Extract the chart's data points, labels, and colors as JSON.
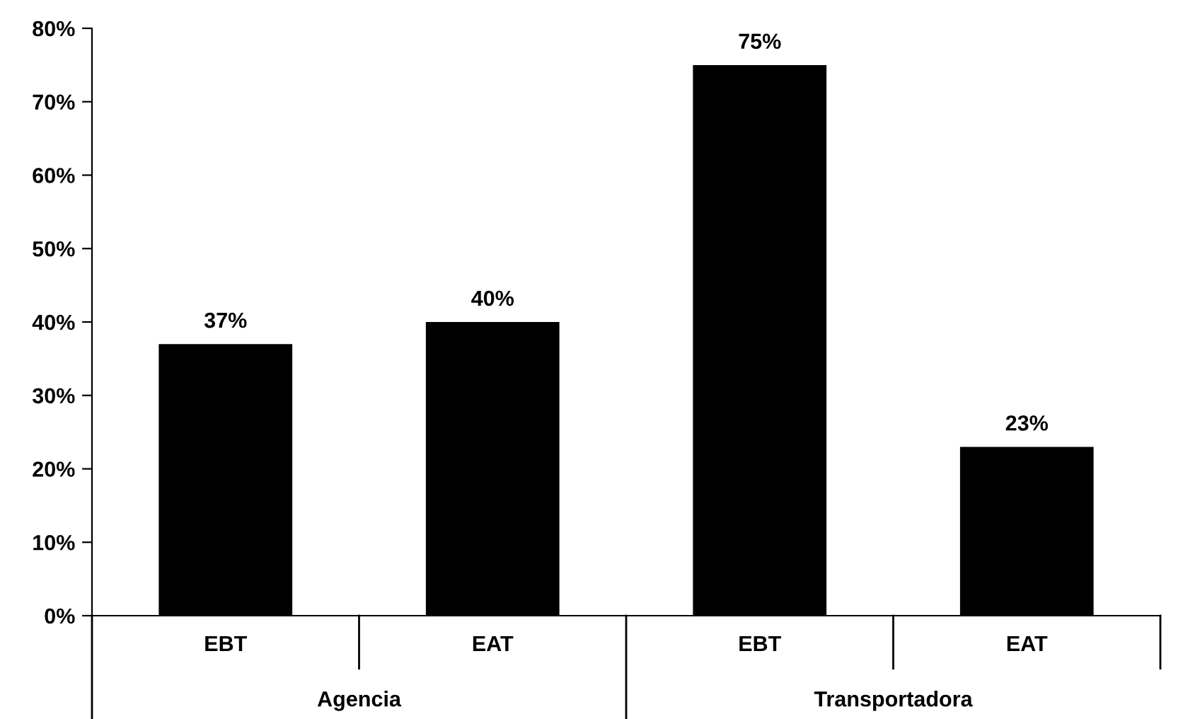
{
  "chart_data": {
    "type": "bar",
    "categories": [
      "EBT",
      "EAT",
      "EBT",
      "EAT"
    ],
    "values": [
      37,
      40,
      75,
      23
    ],
    "color": "#000000",
    "value_labels": [
      "37%",
      "40%",
      "75%",
      "23%"
    ],
    "ylim": [
      0,
      80
    ],
    "yticks": [
      {
        "value": 0,
        "label": "0%"
      },
      {
        "value": 10,
        "label": "10%"
      },
      {
        "value": 20,
        "label": "20%"
      },
      {
        "value": 30,
        "label": "30%"
      },
      {
        "value": 40,
        "label": "40%"
      },
      {
        "value": 50,
        "label": "50%"
      },
      {
        "value": 60,
        "label": "60%"
      },
      {
        "value": 70,
        "label": "70%"
      },
      {
        "value": 80,
        "label": "80%"
      }
    ],
    "annotations": [
      "Agencia",
      "Transportadora"
    ],
    "grid": false,
    "legend": false
  }
}
